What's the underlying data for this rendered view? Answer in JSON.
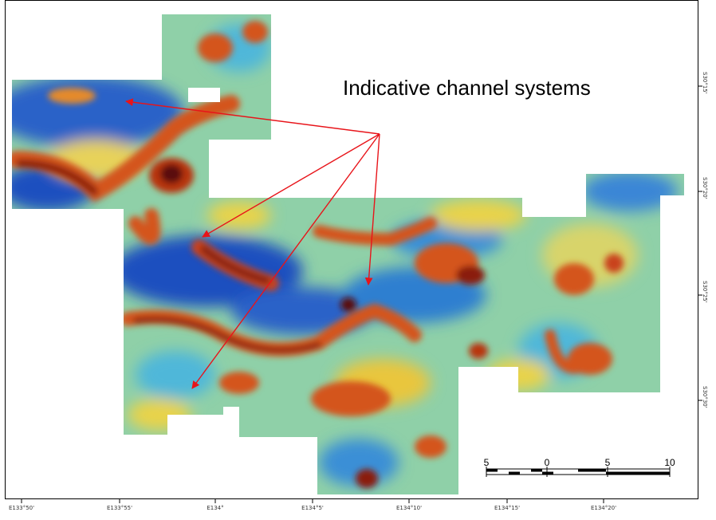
{
  "annotation": {
    "text": "Indicative channel systems"
  },
  "x_axis_ticks": [
    "E133°50'",
    "E133°55'",
    "E134°",
    "E134°5'",
    "E134°10'",
    "E134°15'",
    "E134°20'"
  ],
  "y_axis_ticks": [
    "S30°15'",
    "S30°20'",
    "S30°25'",
    "S30°30'"
  ],
  "scale_bar": {
    "labels": [
      "5",
      "0",
      "5",
      "10"
    ]
  },
  "colors": {
    "low": "#1d4fbf",
    "mid_low": "#4fb7d9",
    "mid": "#9fd6a0",
    "mid_high": "#f0d23c",
    "high": "#d4541a",
    "peak": "#5a0c08",
    "arrow": "#e8141a"
  }
}
